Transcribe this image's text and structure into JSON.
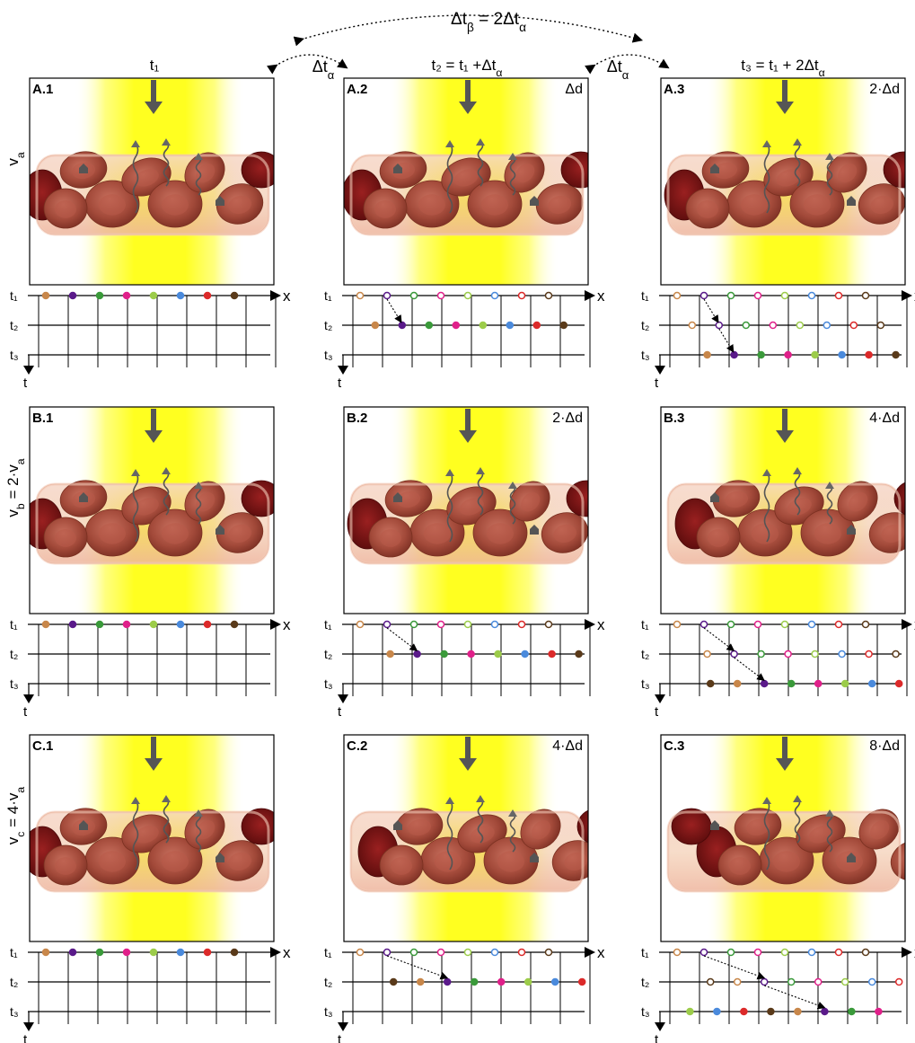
{
  "header": {
    "beta_label": "Δt",
    "beta_sub": "β",
    "beta_eq": " = 2Δt",
    "beta_sub2": "α",
    "alpha_label": "Δt",
    "alpha_sub": "α",
    "col_titles": [
      {
        "base": "t₁",
        "rest": "",
        "sub": ""
      },
      {
        "base": "t₂ = t₁ +Δt",
        "rest": "",
        "sub": "α"
      },
      {
        "base": "t₃ = t₁ + 2Δt",
        "rest": "",
        "sub": "α"
      }
    ]
  },
  "rows": [
    {
      "id": "A",
      "speed": {
        "main": "v",
        "sub": "a",
        "rest": ""
      },
      "panels": [
        {
          "tag": "A.1",
          "disp": ""
        },
        {
          "tag": "A.2",
          "disp": "Δd"
        },
        {
          "tag": "A.3",
          "disp": "2·Δd"
        }
      ],
      "shift": 1
    },
    {
      "id": "B",
      "speed": {
        "main": "v",
        "sub": "b",
        "rest": " = 2·v",
        "sub2": "a"
      },
      "panels": [
        {
          "tag": "B.1",
          "disp": ""
        },
        {
          "tag": "B.2",
          "disp": "2·Δd"
        },
        {
          "tag": "B.3",
          "disp": "4·Δd"
        }
      ],
      "shift": 2
    },
    {
      "id": "C",
      "speed": {
        "main": "v",
        "sub": "c",
        "rest": " = 4·v",
        "sub2": "a"
      },
      "panels": [
        {
          "tag": "C.1",
          "disp": ""
        },
        {
          "tag": "C.2",
          "disp": "4·Δd"
        },
        {
          "tag": "C.3",
          "disp": "8·Δd"
        }
      ],
      "shift": 4
    }
  ],
  "timeline": {
    "row_labels": [
      "t₁",
      "t₂",
      "t₃"
    ],
    "x_label": "x",
    "t_label": "t"
  },
  "colors": {
    "beam_yellow": "#ffff3a",
    "vessel": "#f2c7b8",
    "rbc": "#a3493a",
    "rbc_dark": "#6e1515",
    "arrow": "#555555",
    "markers": [
      "#c8874a",
      "#5a1a8a",
      "#3a9a3a",
      "#e0208a",
      "#9ccc4a",
      "#4a8adc",
      "#dc2a2a",
      "#5a3a1a"
    ]
  }
}
